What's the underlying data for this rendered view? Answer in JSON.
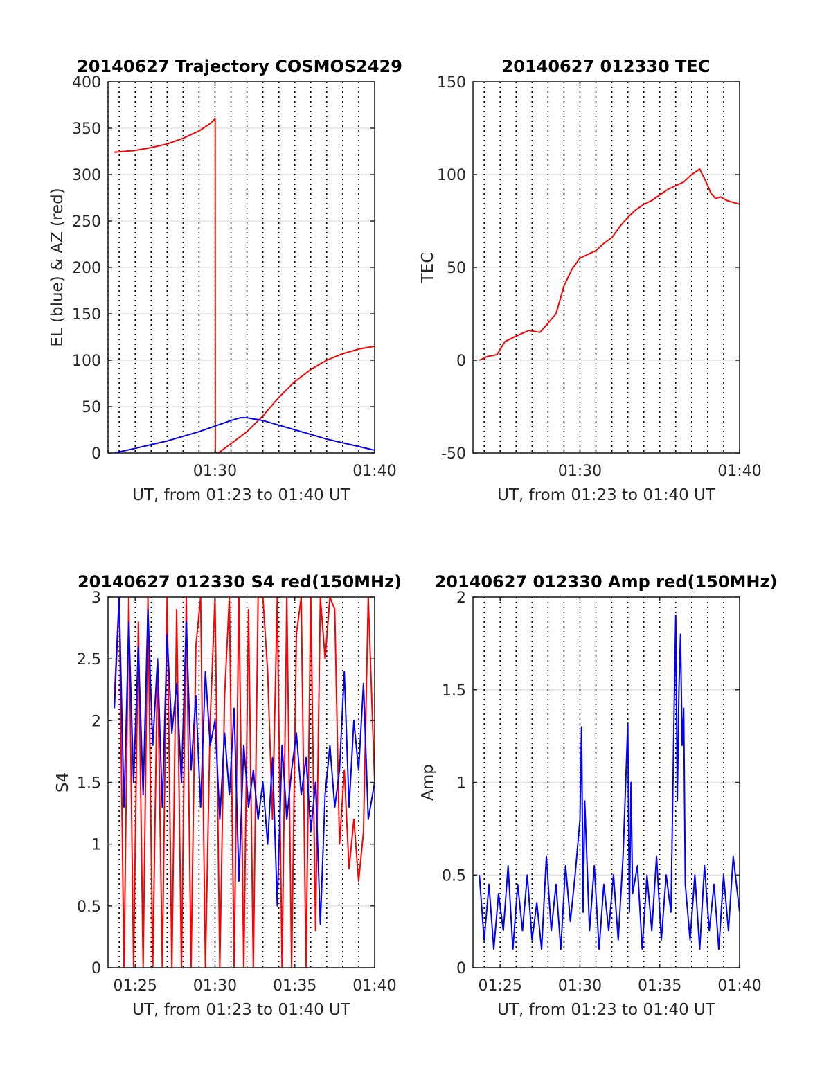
{
  "colors": {
    "red": "#ff0000",
    "blue": "#0000ff",
    "axis": "#262626",
    "grid": "#e3e3e3",
    "vgrid": "#000000"
  },
  "chart_data": [
    {
      "id": "traj",
      "type": "line",
      "title": "20140627 Trajectory COSMOS2429",
      "xlabel": "UT, from 01:23 to 01:40 UT",
      "ylabel": "EL (blue) & AZ (red)",
      "xlim": [
        83.3,
        100
      ],
      "ylim": [
        0,
        400
      ],
      "yticks": [
        0,
        50,
        100,
        150,
        200,
        250,
        300,
        350,
        400
      ],
      "yticklabels": [
        "0",
        "50",
        "100",
        "150",
        "200",
        "250",
        "300",
        "350",
        "400"
      ],
      "xticks": [
        90,
        100
      ],
      "xticklabels": [
        "01:30",
        "01:40"
      ],
      "dotted_x": [
        83.3,
        84.0,
        85.0,
        86.0,
        87.0,
        88.0,
        89.0,
        90.0,
        91.0,
        92.0,
        93.0,
        94.0,
        95.0,
        96.0,
        97.0,
        98.0,
        99.0
      ],
      "series": [
        {
          "color": "red",
          "x": [
            83.7,
            85,
            86,
            87,
            88,
            89,
            89.7,
            90.0,
            90.01,
            90.02,
            90.2,
            91,
            92,
            93,
            94,
            95,
            96,
            97,
            98,
            99,
            100
          ],
          "y": [
            324,
            326,
            329,
            333,
            339,
            347,
            355,
            360,
            358,
            0,
            0,
            10,
            23,
            40,
            60,
            77,
            90,
            100,
            107,
            112,
            115
          ]
        },
        {
          "color": "blue",
          "x": [
            83.7,
            85,
            86,
            87,
            88,
            89,
            90,
            91,
            91.6,
            92,
            93,
            94,
            95,
            96,
            97,
            98,
            99,
            100
          ],
          "y": [
            0,
            5,
            9,
            13,
            18,
            23,
            29,
            35,
            38,
            38,
            35,
            30,
            25,
            20,
            15,
            11,
            7,
            3
          ]
        }
      ]
    },
    {
      "id": "tec",
      "type": "line",
      "title": "20140627 012330 TEC",
      "xlabel": "UT, from 01:23 to 01:40 UT",
      "ylabel": "TEC",
      "xlim": [
        83.3,
        100
      ],
      "ylim": [
        -50,
        150
      ],
      "yticks": [
        -50,
        0,
        50,
        100,
        150
      ],
      "yticklabels": [
        "-50",
        "0",
        "50",
        "100",
        "150"
      ],
      "xticks": [
        90,
        100
      ],
      "xticklabels": [
        "01:30",
        "01:40"
      ],
      "dotted_x": [
        84.0,
        85.0,
        86.0,
        87.0,
        88.0,
        89.0,
        90.0,
        91.0,
        92.0,
        93.0,
        94.0,
        95.0,
        96.0,
        97.0,
        98.0,
        99.0
      ],
      "series": [
        {
          "color": "red",
          "x": [
            83.7,
            84.2,
            84.8,
            85.3,
            86,
            86.8,
            87.5,
            88,
            88.5,
            89,
            89.5,
            90,
            90.5,
            91,
            91.5,
            92,
            92.5,
            93,
            93.5,
            94,
            94.5,
            95,
            95.5,
            96,
            96.5,
            97,
            97.5,
            97.9,
            98.2,
            98.5,
            98.8,
            99.2,
            99.6,
            100
          ],
          "y": [
            0,
            2,
            3,
            10,
            13,
            16,
            15,
            20,
            25,
            40,
            49,
            55,
            57,
            59,
            63,
            66,
            72,
            77,
            81,
            84,
            86,
            89,
            92,
            94,
            96,
            100,
            103,
            96,
            90,
            87,
            88,
            86,
            85,
            84
          ]
        }
      ]
    },
    {
      "id": "s4",
      "type": "line",
      "title": "20140627 012330 S4 red(150MHz)",
      "xlabel": "UT, from 01:23 to 01:40 UT",
      "ylabel": "S4",
      "xlim": [
        83.3,
        100
      ],
      "ylim": [
        0,
        3
      ],
      "yticks": [
        0,
        0.5,
        1,
        1.5,
        2,
        2.5,
        3
      ],
      "yticklabels": [
        "0",
        "0.5",
        "1",
        "1.5",
        "2",
        "2.5",
        "3"
      ],
      "xticks": [
        85,
        90,
        95,
        100
      ],
      "xticklabels": [
        "01:25",
        "01:30",
        "01:35",
        "01:40"
      ],
      "dotted_x": [
        84.0,
        85.0,
        86.0,
        87.0,
        88.0,
        89.0,
        90.0,
        91.0,
        92.0,
        93.0,
        94.0,
        95.0,
        96.0,
        97.0,
        98.0,
        99.0
      ],
      "series": [
        {
          "color": "red",
          "x": [
            83.7,
            84.0,
            84.3,
            84.6,
            84.9,
            85.2,
            85.5,
            85.8,
            86.1,
            86.4,
            86.7,
            87.0,
            87.3,
            87.6,
            87.9,
            88.2,
            88.5,
            88.8,
            89.1,
            89.4,
            89.7,
            90.0,
            90.3,
            90.6,
            90.9,
            91.2,
            91.5,
            91.8,
            92.1,
            92.4,
            92.7,
            93.0,
            93.3,
            93.6,
            93.9,
            94.2,
            94.5,
            94.8,
            95.1,
            95.4,
            95.7,
            96.0,
            96.3,
            96.6,
            96.9,
            97.2,
            97.5,
            97.8,
            98.1,
            98.4,
            98.7,
            99.0,
            99.3,
            99.6,
            100
          ],
          "y": [
            2.2,
            3.0,
            0.0,
            3.0,
            0.0,
            2.8,
            0.0,
            3.0,
            0.0,
            2.5,
            0.0,
            3.0,
            0.0,
            2.9,
            0.0,
            3.0,
            0.0,
            2.6,
            3.0,
            0.0,
            2.0,
            3.0,
            0.0,
            2.2,
            3.0,
            0.0,
            3.0,
            0.0,
            2.9,
            0.0,
            3.0,
            3.0,
            2.4,
            1.2,
            3.0,
            0.0,
            3.0,
            0.0,
            2.7,
            3.0,
            0.0,
            3.0,
            0.3,
            3.0,
            2.5,
            3.0,
            2.9,
            1.0,
            1.6,
            0.8,
            1.2,
            0.7,
            1.1,
            3.0,
            1.5
          ]
        },
        {
          "color": "blue",
          "x": [
            83.7,
            84.0,
            84.3,
            84.6,
            84.9,
            85.2,
            85.5,
            85.8,
            86.1,
            86.4,
            86.7,
            87.0,
            87.3,
            87.6,
            87.9,
            88.2,
            88.5,
            88.8,
            89.1,
            89.4,
            89.7,
            90.0,
            90.3,
            90.6,
            90.9,
            91.2,
            91.5,
            91.8,
            92.1,
            92.4,
            92.7,
            93.0,
            93.3,
            93.6,
            93.9,
            94.2,
            94.5,
            94.8,
            95.1,
            95.4,
            95.7,
            96.0,
            96.3,
            96.6,
            96.9,
            97.2,
            97.5,
            97.8,
            98.1,
            98.4,
            98.7,
            99.0,
            99.3,
            99.6,
            100
          ],
          "y": [
            2.1,
            3.0,
            1.3,
            2.8,
            1.5,
            2.6,
            1.4,
            2.9,
            1.8,
            2.5,
            1.3,
            2.7,
            1.9,
            2.3,
            1.5,
            2.8,
            1.6,
            2.2,
            1.3,
            2.4,
            1.8,
            2.0,
            1.2,
            1.9,
            1.4,
            2.1,
            0.7,
            1.8,
            1.3,
            1.6,
            1.2,
            1.5,
            1.0,
            1.7,
            0.5,
            1.8,
            1.2,
            1.6,
            1.9,
            1.4,
            1.7,
            1.1,
            1.5,
            0.35,
            1.4,
            1.8,
            1.3,
            1.6,
            2.4,
            1.3,
            2.0,
            1.6,
            2.3,
            1.2,
            1.5
          ]
        }
      ]
    },
    {
      "id": "amp",
      "type": "line",
      "title": "20140627 012330 Amp red(150MHz)",
      "xlabel": "UT, from 01:23 to 01:40 UT",
      "ylabel": "Amp",
      "xlim": [
        83.3,
        100
      ],
      "ylim": [
        0,
        2
      ],
      "yticks": [
        0,
        0.5,
        1,
        1.5,
        2
      ],
      "yticklabels": [
        "0",
        "0.5",
        "1",
        "1.5",
        "2"
      ],
      "xticks": [
        85,
        90,
        95,
        100
      ],
      "xticklabels": [
        "01:25",
        "01:30",
        "01:35",
        "01:40"
      ],
      "dotted_x": [
        84.0,
        85.0,
        86.0,
        87.0,
        88.0,
        89.0,
        90.0,
        91.0,
        92.0,
        93.0,
        94.0,
        95.0,
        96.0,
        97.0,
        98.0,
        99.0
      ],
      "series": [
        {
          "color": "blue",
          "x": [
            83.7,
            84.0,
            84.3,
            84.6,
            84.9,
            85.2,
            85.5,
            85.8,
            86.1,
            86.4,
            86.7,
            87.0,
            87.3,
            87.6,
            87.9,
            88.2,
            88.5,
            88.8,
            89.1,
            89.4,
            89.7,
            90.0,
            90.1,
            90.2,
            90.3,
            90.6,
            90.9,
            91.2,
            91.5,
            91.8,
            92.1,
            92.4,
            92.7,
            93.0,
            93.1,
            93.2,
            93.3,
            93.6,
            93.9,
            94.2,
            94.5,
            94.8,
            95.1,
            95.4,
            95.7,
            95.9,
            96.0,
            96.1,
            96.2,
            96.3,
            96.4,
            96.5,
            96.6,
            96.9,
            97.2,
            97.5,
            97.8,
            98.1,
            98.4,
            98.7,
            99.0,
            99.3,
            99.6,
            100
          ],
          "y": [
            0.5,
            0.15,
            0.45,
            0.1,
            0.4,
            0.2,
            0.55,
            0.1,
            0.45,
            0.2,
            0.5,
            0.15,
            0.35,
            0.1,
            0.6,
            0.2,
            0.45,
            0.1,
            0.55,
            0.25,
            0.5,
            0.8,
            1.3,
            0.3,
            0.9,
            0.2,
            0.55,
            0.1,
            0.45,
            0.2,
            0.5,
            0.15,
            0.6,
            1.32,
            0.3,
            1.0,
            0.4,
            0.55,
            0.1,
            0.5,
            0.2,
            0.6,
            0.15,
            0.5,
            0.3,
            1.4,
            1.9,
            0.9,
            1.5,
            1.8,
            1.2,
            1.4,
            0.45,
            0.15,
            0.5,
            0.1,
            0.55,
            0.2,
            0.45,
            0.1,
            0.5,
            0.2,
            0.6,
            0.3
          ]
        }
      ]
    }
  ]
}
